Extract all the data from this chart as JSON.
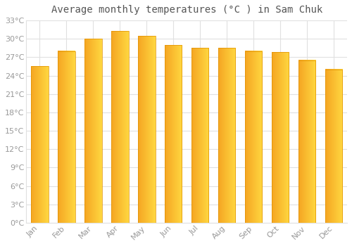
{
  "title": "Average monthly temperatures (°C ) in Sam Chuk",
  "months": [
    "Jan",
    "Feb",
    "Mar",
    "Apr",
    "May",
    "Jun",
    "Jul",
    "Aug",
    "Sep",
    "Oct",
    "Nov",
    "Dec"
  ],
  "values": [
    25.5,
    28.0,
    30.0,
    31.3,
    30.5,
    29.0,
    28.5,
    28.5,
    28.0,
    27.8,
    26.5,
    25.0
  ],
  "bar_color_left": "#F5A623",
  "bar_color_right": "#FFD740",
  "bar_edge_color": "#E09000",
  "ylim": [
    0,
    33
  ],
  "yticks": [
    0,
    3,
    6,
    9,
    12,
    15,
    18,
    21,
    24,
    27,
    30,
    33
  ],
  "ytick_labels": [
    "0°C",
    "3°C",
    "6°C",
    "9°C",
    "12°C",
    "15°C",
    "18°C",
    "21°C",
    "24°C",
    "27°C",
    "30°C",
    "33°C"
  ],
  "background_color": "#ffffff",
  "plot_bg_color": "#f8f8f8",
  "grid_color": "#e0e0e0",
  "title_fontsize": 10,
  "tick_fontsize": 8,
  "tick_color": "#999999",
  "title_color": "#555555",
  "gradient_steps": 100
}
